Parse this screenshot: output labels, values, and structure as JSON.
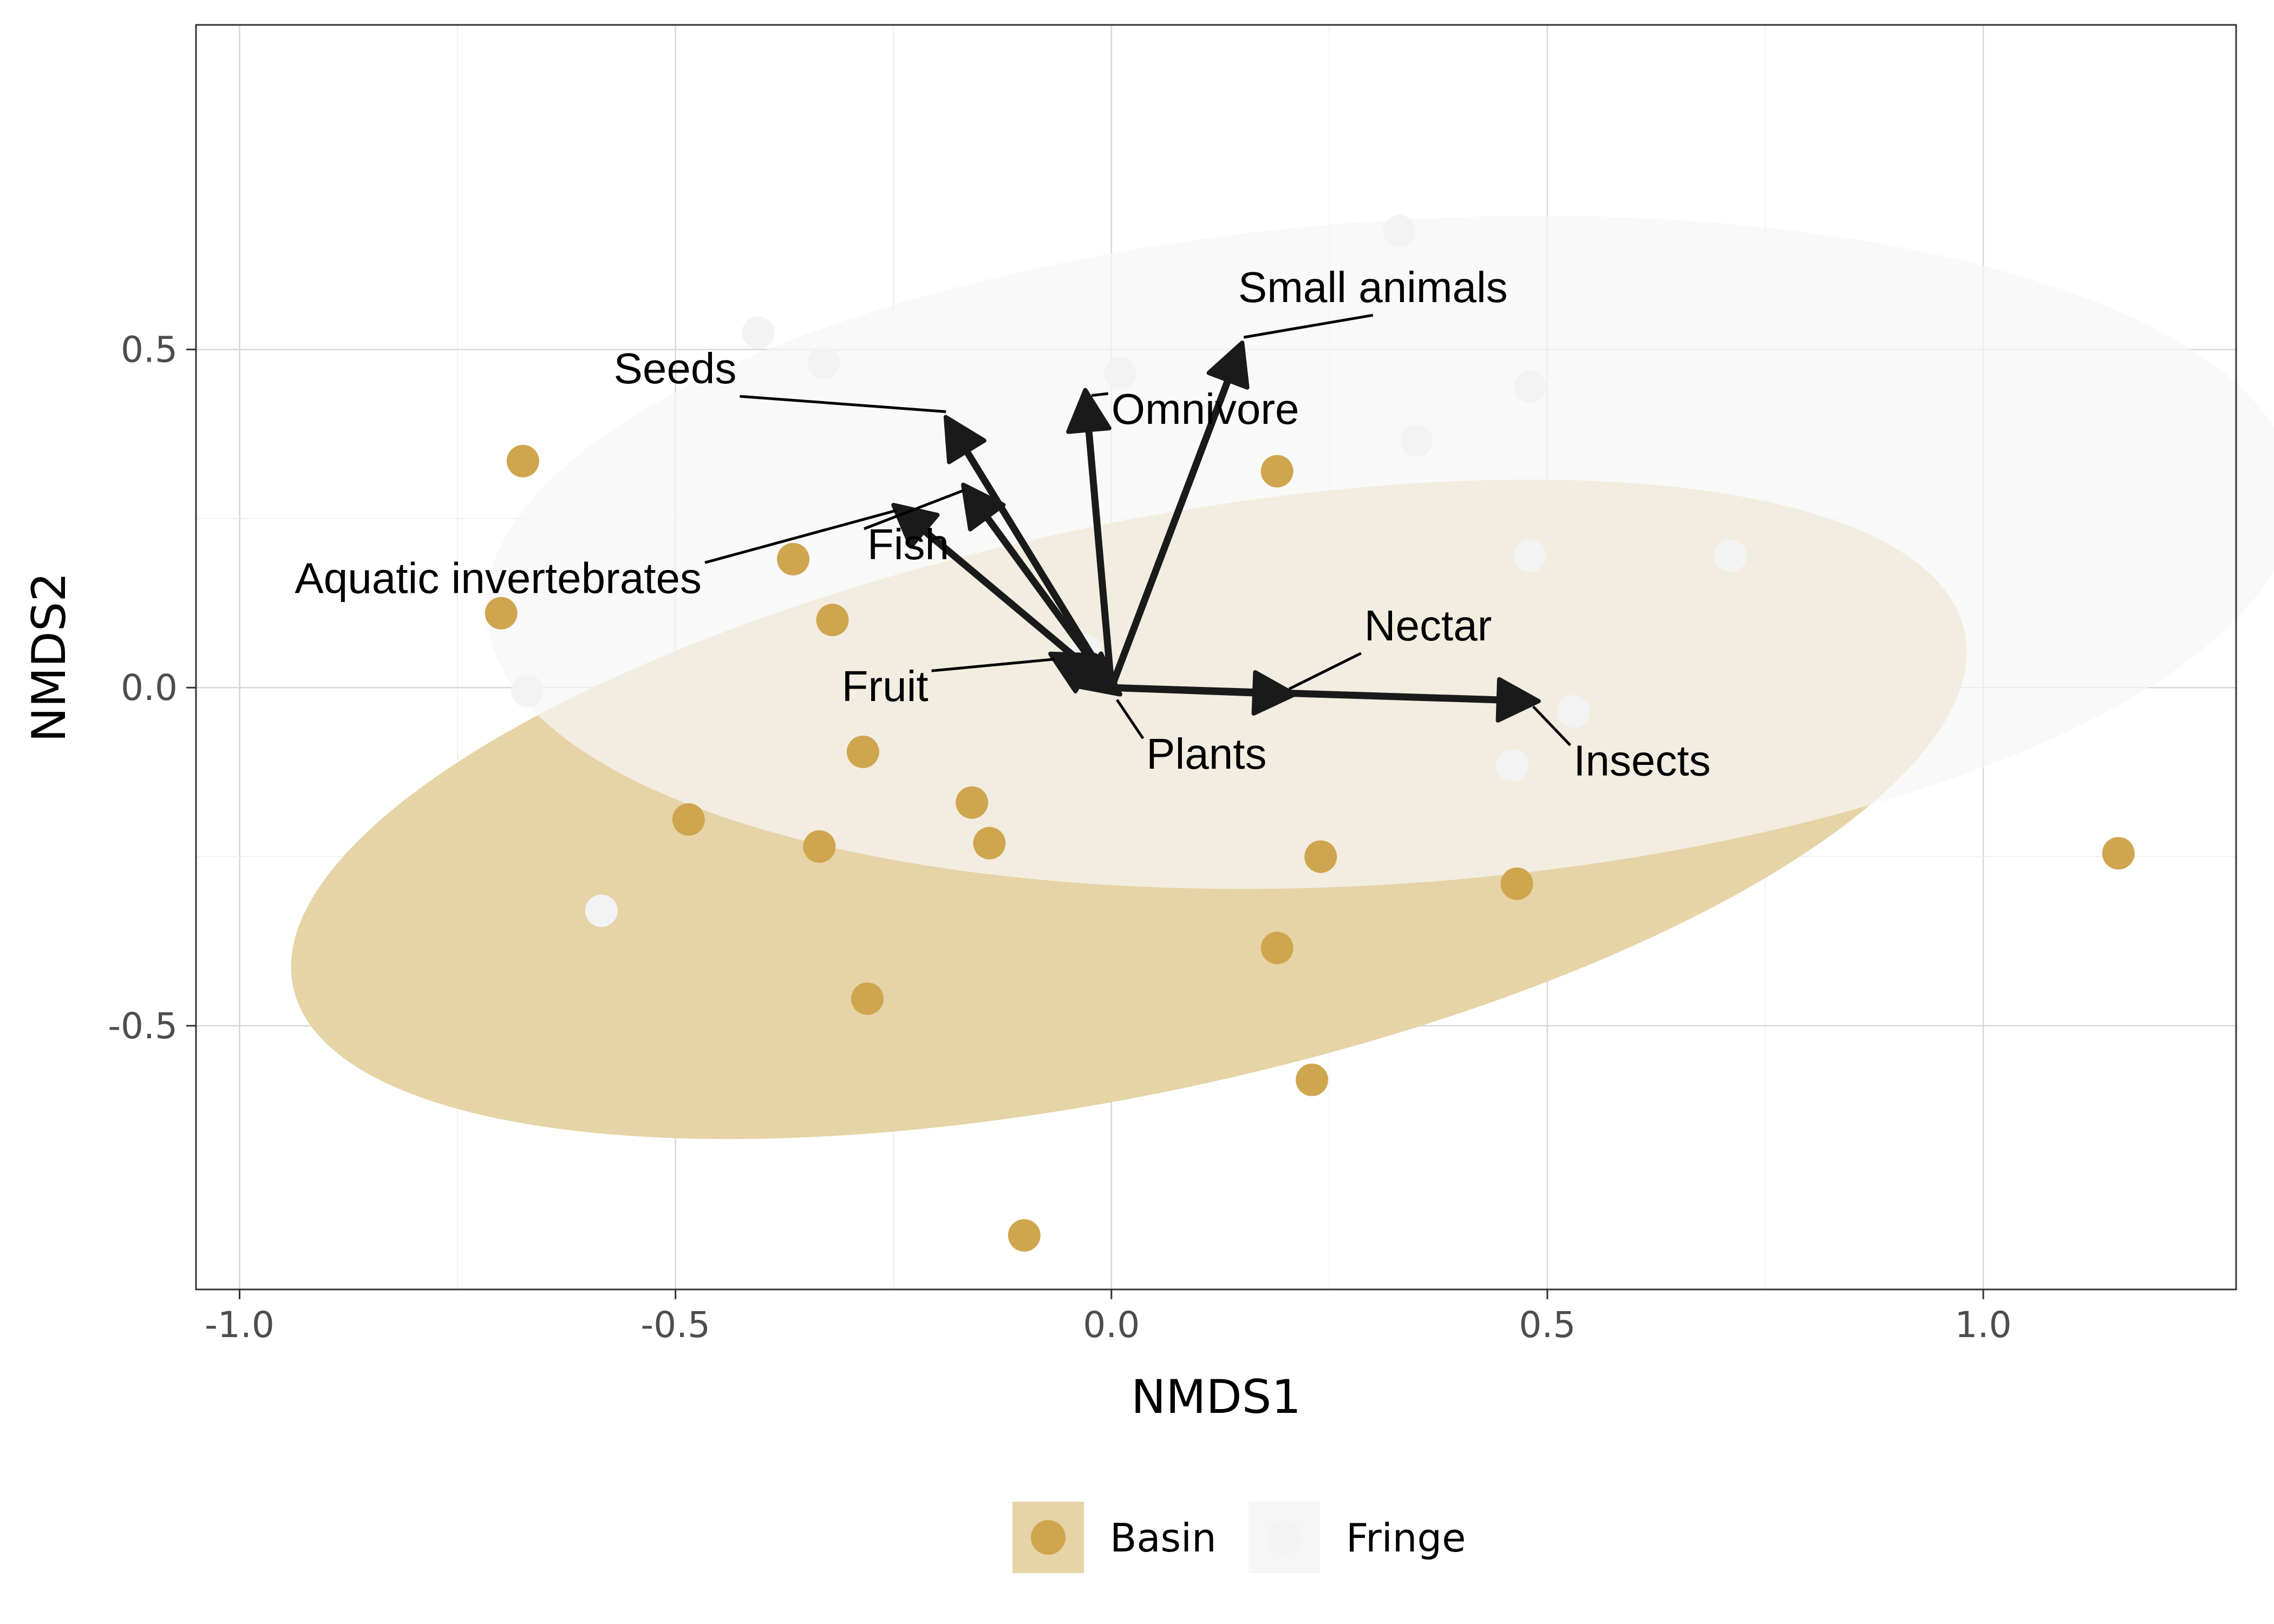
{
  "chart_data": {
    "type": "scatter",
    "title": "",
    "xlabel": "NMDS1",
    "ylabel": "NMDS2",
    "xlim": [
      -1.05,
      1.29
    ],
    "ylim": [
      -0.89,
      0.98
    ],
    "x_ticks": [
      -1.0,
      -0.5,
      0.0,
      0.5,
      1.0
    ],
    "x_tick_labels": [
      "-1.0",
      "-0.5",
      "0.0",
      "0.5",
      "1.0"
    ],
    "y_ticks": [
      -0.5,
      0.0,
      0.5
    ],
    "y_tick_labels": [
      "-0.5",
      "0.0",
      "0.5"
    ],
    "grid": true,
    "legend_position": "bottom",
    "groups": [
      {
        "name": "Basin",
        "color": "#cfa54f",
        "ellipse_color": "#e6d3a6",
        "points": [
          [
            -0.675,
            0.335
          ],
          [
            -0.7,
            0.11
          ],
          [
            -0.365,
            0.19
          ],
          [
            -0.32,
            0.1
          ],
          [
            -0.285,
            -0.095
          ],
          [
            -0.16,
            -0.17
          ],
          [
            -0.14,
            -0.23
          ],
          [
            -0.335,
            -0.235
          ],
          [
            -0.485,
            -0.195
          ],
          [
            -0.28,
            -0.46
          ],
          [
            -0.1,
            -0.81
          ],
          [
            0.19,
            0.32
          ],
          [
            0.24,
            -0.25
          ],
          [
            0.19,
            -0.385
          ],
          [
            0.23,
            -0.58
          ],
          [
            0.465,
            -0.29
          ],
          [
            1.155,
            -0.245
          ]
        ]
      },
      {
        "name": "Fringe",
        "color": "#f3f3f3",
        "ellipse_color": "#f6f6f6",
        "points": [
          [
            -0.405,
            0.525
          ],
          [
            -0.33,
            0.48
          ],
          [
            0.01,
            0.465
          ],
          [
            0.33,
            0.675
          ],
          [
            0.35,
            0.365
          ],
          [
            0.48,
            0.445
          ],
          [
            0.48,
            0.195
          ],
          [
            0.71,
            0.195
          ],
          [
            0.53,
            -0.035
          ],
          [
            0.46,
            -0.115
          ],
          [
            -0.67,
            -0.005
          ],
          [
            -0.585,
            -0.33
          ],
          [
            -0.03,
            0.055
          ]
        ]
      }
    ],
    "vectors": [
      {
        "name": "Small animals",
        "x": 0.15,
        "y": 0.51
      },
      {
        "name": "Seeds",
        "x": -0.19,
        "y": 0.4
      },
      {
        "name": "Omnivore",
        "x": -0.03,
        "y": 0.44
      },
      {
        "name": "Fish",
        "x": -0.17,
        "y": 0.3
      },
      {
        "name": "Aquatic invertebrates",
        "x": -0.25,
        "y": 0.27
      },
      {
        "name": "Nectar",
        "x": 0.21,
        "y": -0.01
      },
      {
        "name": "Insects",
        "x": 0.49,
        "y": -0.02
      },
      {
        "name": "Fruit",
        "x": -0.07,
        "y": 0.05
      },
      {
        "name": "Plants",
        "x": 0.01,
        "y": -0.01
      }
    ]
  }
}
